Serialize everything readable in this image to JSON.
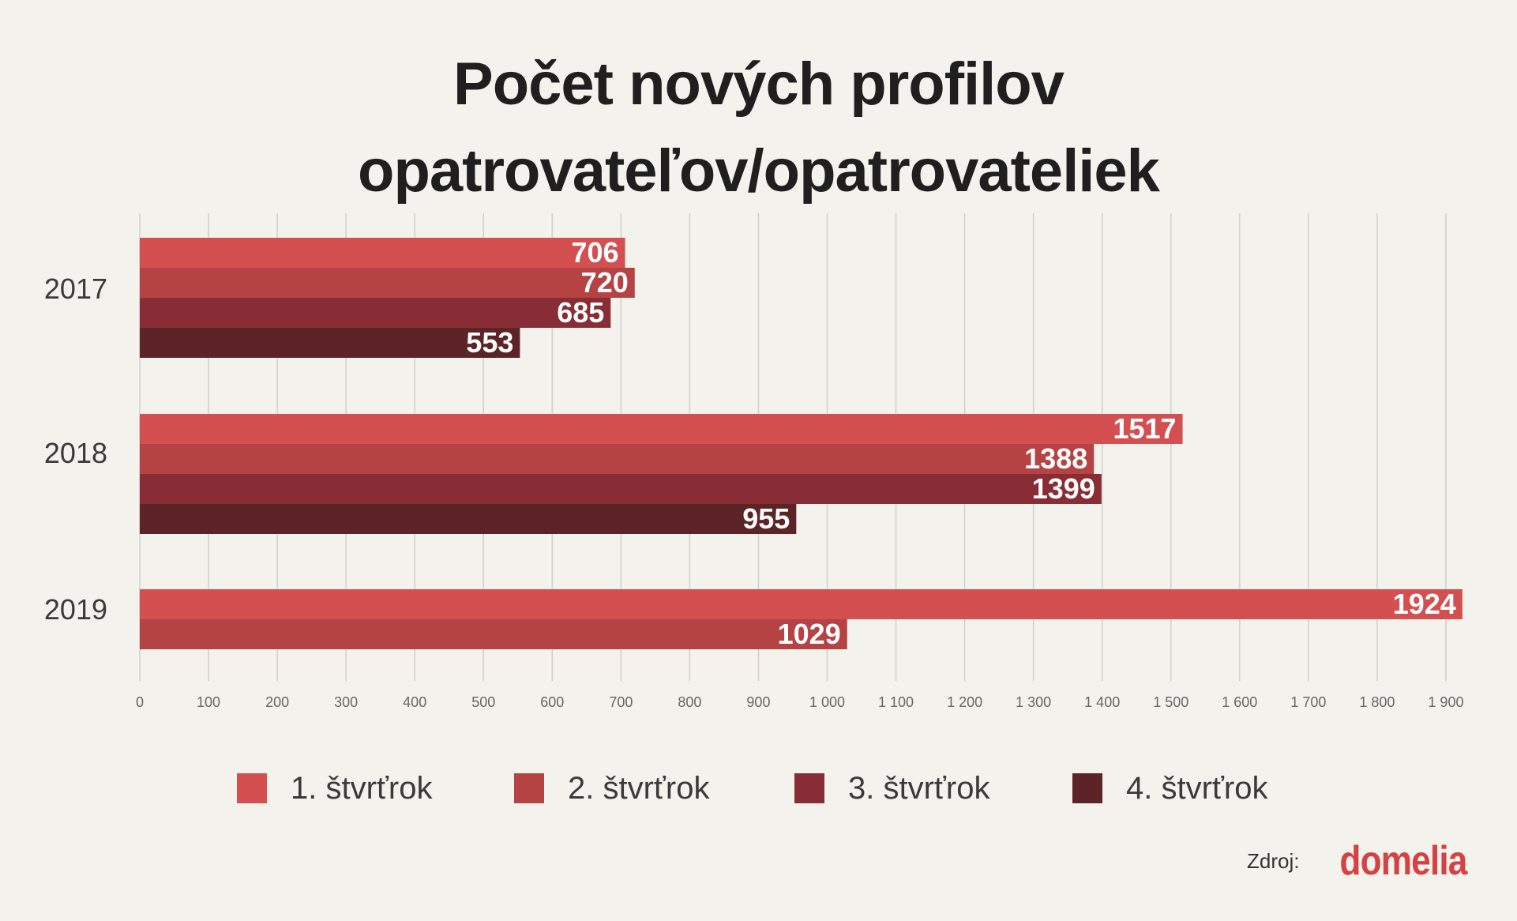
{
  "title_line1": "Počet nových profilov",
  "title_line2": "opatrovateľov/opatrovateliek",
  "colors": {
    "background": "#f3f2ec",
    "q1": "#d45050",
    "q2": "#b54343",
    "q3": "#882d35",
    "q4": "#5c2427",
    "grid": "#cfcfcf",
    "brand": "#d34245"
  },
  "chart_data": {
    "type": "bar",
    "orientation": "horizontal",
    "categories": [
      "2017",
      "2018",
      "2019"
    ],
    "series": [
      {
        "name": "1. štvrťrok",
        "values": [
          706,
          1517,
          1924
        ]
      },
      {
        "name": "2. štvrťrok",
        "values": [
          720,
          1388,
          1029
        ]
      },
      {
        "name": "3. štvrťrok",
        "values": [
          685,
          1399,
          null
        ]
      },
      {
        "name": "4. štvrťrok",
        "values": [
          553,
          955,
          null
        ]
      }
    ],
    "x_ticks": [
      "0",
      "100",
      "200",
      "300",
      "400",
      "500",
      "600",
      "700",
      "800",
      "900",
      "1 000",
      "1 100",
      "1 200",
      "1 300",
      "1 400",
      "1 500",
      "1 600",
      "1 700",
      "1 800",
      "1 900"
    ],
    "xlim": [
      0,
      1924
    ],
    "grid": "vertical",
    "legend_position": "bottom"
  },
  "source": {
    "label": "Zdroj:",
    "brand": "domelia"
  }
}
